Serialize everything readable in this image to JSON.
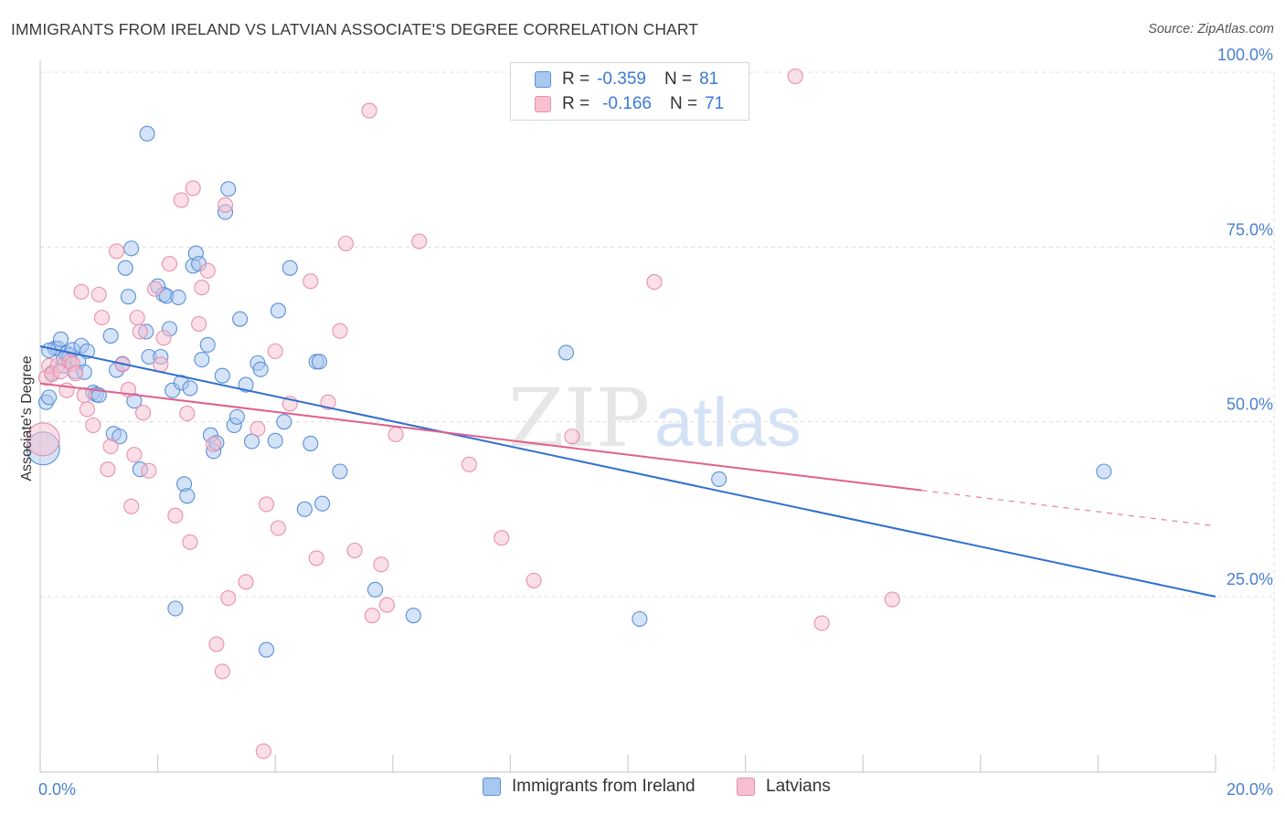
{
  "header": {
    "title": "IMMIGRANTS FROM IRELAND VS LATVIAN ASSOCIATE'S DEGREE CORRELATION CHART",
    "source": "Source: ZipAtlas.com"
  },
  "legend": {
    "rows": [
      {
        "r_label": "R =",
        "r_value": "-0.359",
        "n_label": "N =",
        "n_value": "81"
      },
      {
        "r_label": "R =",
        "r_value": "-0.166",
        "n_label": "N =",
        "n_value": "71"
      }
    ]
  },
  "bottom_legend": {
    "items": [
      "Immigrants from Ireland",
      "Latvians"
    ]
  },
  "watermark": {
    "zip": "ZIP",
    "atlas": "atlas"
  },
  "colors": {
    "blue_fill": "#a9c8f0",
    "blue_stroke": "#5a8fd8",
    "blue_line": "#2f6fd0",
    "pink_fill": "#f6c0d0",
    "pink_stroke": "#e890ab",
    "pink_line": "#e0608c",
    "grid": "#dcdcdc",
    "tick_text": "#4a7fd0"
  },
  "chart_data": {
    "type": "scatter",
    "title": "IMMIGRANTS FROM IRELAND VS LATVIAN ASSOCIATE'S DEGREE CORRELATION CHART",
    "xlabel": "",
    "ylabel": "Associate's Degree",
    "xlim": [
      0,
      20
    ],
    "ylim": [
      0,
      105
    ],
    "x_tick_labels": [
      "0.0%",
      "20.0%"
    ],
    "y_ticks": [
      25,
      50,
      75,
      100
    ],
    "y_tick_labels": [
      "25.0%",
      "50.0%",
      "75.0%",
      "100.0%"
    ],
    "grid": true,
    "legend_position": "top-center",
    "series": [
      {
        "name": "Immigrants from Ireland",
        "r": -0.359,
        "n": 81,
        "trend": {
          "x": [
            0,
            20
          ],
          "y": [
            60.8,
            25.0
          ]
        },
        "points": [
          [
            0.05,
            46.2
          ],
          [
            0.1,
            52.8
          ],
          [
            0.15,
            53.5
          ],
          [
            0.2,
            57.0
          ],
          [
            0.25,
            60.5
          ],
          [
            0.3,
            60.5
          ],
          [
            0.35,
            61.8
          ],
          [
            0.4,
            58.0
          ],
          [
            0.45,
            59.8
          ],
          [
            0.5,
            59.5
          ],
          [
            0.55,
            60.3
          ],
          [
            0.6,
            57.2
          ],
          [
            0.65,
            58.6
          ],
          [
            0.7,
            60.9
          ],
          [
            0.75,
            57.1
          ],
          [
            0.8,
            60.1
          ],
          [
            0.9,
            54.2
          ],
          [
            0.95,
            53.9
          ],
          [
            1.0,
            53.8
          ],
          [
            1.2,
            62.3
          ],
          [
            1.25,
            48.3
          ],
          [
            1.3,
            57.4
          ],
          [
            1.35,
            47.9
          ],
          [
            1.4,
            58.3
          ],
          [
            1.45,
            72.0
          ],
          [
            1.5,
            67.9
          ],
          [
            1.55,
            74.8
          ],
          [
            1.6,
            53.0
          ],
          [
            1.7,
            43.2
          ],
          [
            1.8,
            62.9
          ],
          [
            1.85,
            59.3
          ],
          [
            1.82,
            91.2
          ],
          [
            2.0,
            69.4
          ],
          [
            2.05,
            59.3
          ],
          [
            2.1,
            68.2
          ],
          [
            2.15,
            68.0
          ],
          [
            2.2,
            63.3
          ],
          [
            2.25,
            54.5
          ],
          [
            2.3,
            23.3
          ],
          [
            2.35,
            67.8
          ],
          [
            2.4,
            55.6
          ],
          [
            2.45,
            41.1
          ],
          [
            2.5,
            39.4
          ],
          [
            2.55,
            54.8
          ],
          [
            2.6,
            72.3
          ],
          [
            2.65,
            74.1
          ],
          [
            2.7,
            72.6
          ],
          [
            2.75,
            58.9
          ],
          [
            2.85,
            61.0
          ],
          [
            2.9,
            48.1
          ],
          [
            2.95,
            45.8
          ],
          [
            3.0,
            47.0
          ],
          [
            3.1,
            56.6
          ],
          [
            3.2,
            83.3
          ],
          [
            3.15,
            80.0
          ],
          [
            3.3,
            49.5
          ],
          [
            3.35,
            50.7
          ],
          [
            3.4,
            64.7
          ],
          [
            3.5,
            55.3
          ],
          [
            3.6,
            47.2
          ],
          [
            3.7,
            58.4
          ],
          [
            3.75,
            57.5
          ],
          [
            3.85,
            17.4
          ],
          [
            4.0,
            47.3
          ],
          [
            4.05,
            65.9
          ],
          [
            4.15,
            50.0
          ],
          [
            4.25,
            72.0
          ],
          [
            4.5,
            37.5
          ],
          [
            4.6,
            46.9
          ],
          [
            4.7,
            58.6
          ],
          [
            4.75,
            58.6
          ],
          [
            4.8,
            38.3
          ],
          [
            5.1,
            42.9
          ],
          [
            5.7,
            26.0
          ],
          [
            6.35,
            22.3
          ],
          [
            8.95,
            59.9
          ],
          [
            10.2,
            21.8
          ],
          [
            11.55,
            41.8
          ],
          [
            18.1,
            42.9
          ],
          [
            0.15,
            60.2
          ],
          [
            0.4,
            59.0
          ]
        ]
      },
      {
        "name": "Latvians",
        "r": -0.166,
        "n": 71,
        "trend": {
          "x": [
            0,
            15.0
          ],
          "y": [
            55.5,
            40.2
          ]
        },
        "trend_dashed": {
          "x": [
            15.0,
            20
          ],
          "y": [
            40.2,
            35.1
          ]
        },
        "points": [
          [
            0.05,
            47.5
          ],
          [
            0.1,
            56.3
          ],
          [
            0.15,
            58.0
          ],
          [
            0.2,
            56.8
          ],
          [
            0.3,
            58.1
          ],
          [
            0.35,
            57.2
          ],
          [
            0.45,
            54.5
          ],
          [
            0.5,
            58.6
          ],
          [
            0.55,
            58.3
          ],
          [
            0.6,
            56.9
          ],
          [
            0.7,
            68.6
          ],
          [
            0.75,
            53.8
          ],
          [
            0.8,
            51.8
          ],
          [
            0.9,
            49.5
          ],
          [
            1.0,
            68.2
          ],
          [
            1.05,
            64.9
          ],
          [
            1.15,
            43.2
          ],
          [
            1.2,
            46.5
          ],
          [
            1.3,
            74.4
          ],
          [
            1.4,
            58.2
          ],
          [
            1.5,
            54.6
          ],
          [
            1.55,
            37.9
          ],
          [
            1.6,
            45.3
          ],
          [
            1.65,
            64.9
          ],
          [
            1.7,
            62.9
          ],
          [
            1.75,
            51.3
          ],
          [
            1.85,
            43.0
          ],
          [
            1.95,
            69.0
          ],
          [
            2.05,
            58.2
          ],
          [
            2.1,
            62.0
          ],
          [
            2.2,
            72.6
          ],
          [
            2.3,
            36.6
          ],
          [
            2.4,
            81.7
          ],
          [
            2.5,
            51.2
          ],
          [
            2.55,
            32.8
          ],
          [
            2.6,
            83.4
          ],
          [
            2.7,
            64.0
          ],
          [
            2.75,
            69.2
          ],
          [
            2.85,
            71.6
          ],
          [
            2.95,
            46.8
          ],
          [
            3.0,
            18.2
          ],
          [
            3.1,
            14.3
          ],
          [
            3.15,
            81.0
          ],
          [
            3.2,
            24.8
          ],
          [
            3.5,
            27.1
          ],
          [
            3.7,
            49.0
          ],
          [
            3.8,
            2.9
          ],
          [
            3.85,
            38.2
          ],
          [
            4.0,
            60.1
          ],
          [
            4.05,
            34.8
          ],
          [
            4.25,
            52.6
          ],
          [
            4.6,
            70.1
          ],
          [
            4.7,
            30.5
          ],
          [
            4.9,
            52.8
          ],
          [
            5.1,
            63.0
          ],
          [
            5.2,
            75.5
          ],
          [
            5.35,
            31.6
          ],
          [
            5.6,
            94.5
          ],
          [
            5.65,
            22.3
          ],
          [
            5.8,
            29.6
          ],
          [
            5.9,
            23.8
          ],
          [
            6.05,
            48.2
          ],
          [
            6.45,
            75.8
          ],
          [
            7.3,
            43.9
          ],
          [
            7.85,
            33.4
          ],
          [
            8.4,
            27.3
          ],
          [
            9.05,
            47.9
          ],
          [
            10.45,
            70.0
          ],
          [
            12.85,
            99.4
          ],
          [
            13.3,
            21.2
          ],
          [
            14.5,
            24.6
          ]
        ]
      }
    ]
  }
}
